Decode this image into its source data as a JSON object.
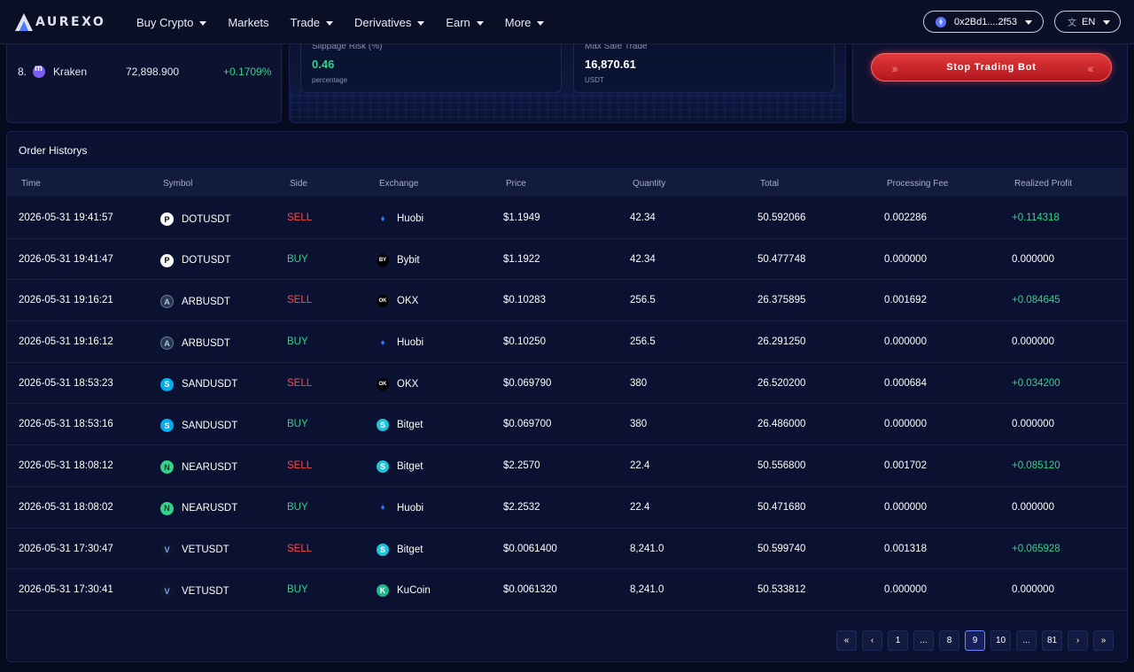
{
  "nav": {
    "brand": "AUREXO",
    "menu": [
      {
        "label": "Buy Crypto",
        "dropdown": true
      },
      {
        "label": "Markets",
        "dropdown": false
      },
      {
        "label": "Trade",
        "dropdown": true
      },
      {
        "label": "Derivatives",
        "dropdown": true
      },
      {
        "label": "Earn",
        "dropdown": true
      },
      {
        "label": "More",
        "dropdown": true
      }
    ],
    "wallet": "0x2Bd1....2f53",
    "language": "EN"
  },
  "ranking": {
    "row": {
      "rank": "8.",
      "name": "Kraken",
      "price": "72,898.900",
      "change": "+0.1709%"
    }
  },
  "stats": {
    "slippage_label": "Slippage Risk (%)",
    "slippage_value": "0.46",
    "slippage_unit": "percentage",
    "max_trade_label": "Max Safe Trade",
    "max_trade_value": "16,870.61",
    "max_trade_unit": "USDT"
  },
  "bot": {
    "stop_label": "Stop Trading Bot"
  },
  "orders": {
    "title": "Order Historys",
    "columns": [
      "Time",
      "Symbol",
      "Side",
      "Exchange",
      "Price",
      "Quantity",
      "Total",
      "Processing Fee",
      "Realized Profit"
    ],
    "rows": [
      {
        "time": "2026-05-31 19:41:57",
        "symbol": "DOTUSDT",
        "sym_icon": "dot",
        "side": "SELL",
        "exchange": "Huobi",
        "ex_icon": "huobi",
        "price": "$1.1949",
        "qty": "42.34",
        "total": "50.592066",
        "fee": "0.002286",
        "profit": "+0.114318"
      },
      {
        "time": "2026-05-31 19:41:47",
        "symbol": "DOTUSDT",
        "sym_icon": "dot",
        "side": "BUY",
        "exchange": "Bybit",
        "ex_icon": "bybit",
        "price": "$1.1922",
        "qty": "42.34",
        "total": "50.477748",
        "fee": "0.000000",
        "profit": "0.000000"
      },
      {
        "time": "2026-05-31 19:16:21",
        "symbol": "ARBUSDT",
        "sym_icon": "arb",
        "side": "SELL",
        "exchange": "OKX",
        "ex_icon": "okx",
        "price": "$0.10283",
        "qty": "256.5",
        "total": "26.375895",
        "fee": "0.001692",
        "profit": "+0.084645"
      },
      {
        "time": "2026-05-31 19:16:12",
        "symbol": "ARBUSDT",
        "sym_icon": "arb",
        "side": "BUY",
        "exchange": "Huobi",
        "ex_icon": "huobi",
        "price": "$0.10250",
        "qty": "256.5",
        "total": "26.291250",
        "fee": "0.000000",
        "profit": "0.000000"
      },
      {
        "time": "2026-05-31 18:53:23",
        "symbol": "SANDUSDT",
        "sym_icon": "sand",
        "side": "SELL",
        "exchange": "OKX",
        "ex_icon": "okx",
        "price": "$0.069790",
        "qty": "380",
        "total": "26.520200",
        "fee": "0.000684",
        "profit": "+0.034200"
      },
      {
        "time": "2026-05-31 18:53:16",
        "symbol": "SANDUSDT",
        "sym_icon": "sand",
        "side": "BUY",
        "exchange": "Bitget",
        "ex_icon": "bitget",
        "price": "$0.069700",
        "qty": "380",
        "total": "26.486000",
        "fee": "0.000000",
        "profit": "0.000000"
      },
      {
        "time": "2026-05-31 18:08:12",
        "symbol": "NEARUSDT",
        "sym_icon": "near",
        "side": "SELL",
        "exchange": "Bitget",
        "ex_icon": "bitget",
        "price": "$2.2570",
        "qty": "22.4",
        "total": "50.556800",
        "fee": "0.001702",
        "profit": "+0.085120"
      },
      {
        "time": "2026-05-31 18:08:02",
        "symbol": "NEARUSDT",
        "sym_icon": "near",
        "side": "BUY",
        "exchange": "Huobi",
        "ex_icon": "huobi",
        "price": "$2.2532",
        "qty": "22.4",
        "total": "50.471680",
        "fee": "0.000000",
        "profit": "0.000000"
      },
      {
        "time": "2026-05-31 17:30:47",
        "symbol": "VETUSDT",
        "sym_icon": "vet",
        "side": "SELL",
        "exchange": "Bitget",
        "ex_icon": "bitget",
        "price": "$0.0061400",
        "qty": "8,241.0",
        "total": "50.599740",
        "fee": "0.001318",
        "profit": "+0.065928"
      },
      {
        "time": "2026-05-31 17:30:41",
        "symbol": "VETUSDT",
        "sym_icon": "vet",
        "side": "BUY",
        "exchange": "KuCoin",
        "ex_icon": "kucoin",
        "price": "$0.0061320",
        "qty": "8,241.0",
        "total": "50.533812",
        "fee": "0.000000",
        "profit": "0.000000"
      }
    ]
  },
  "pagination": {
    "items": [
      "«",
      "‹",
      "1",
      "...",
      "8",
      "9",
      "10",
      "...",
      "81",
      "›",
      "»"
    ],
    "active": "9"
  },
  "colors": {
    "accent": "#6f86ff",
    "sell": "#ff4a4a",
    "buy": "#2fd48a",
    "stop_button": "#d62a30"
  }
}
